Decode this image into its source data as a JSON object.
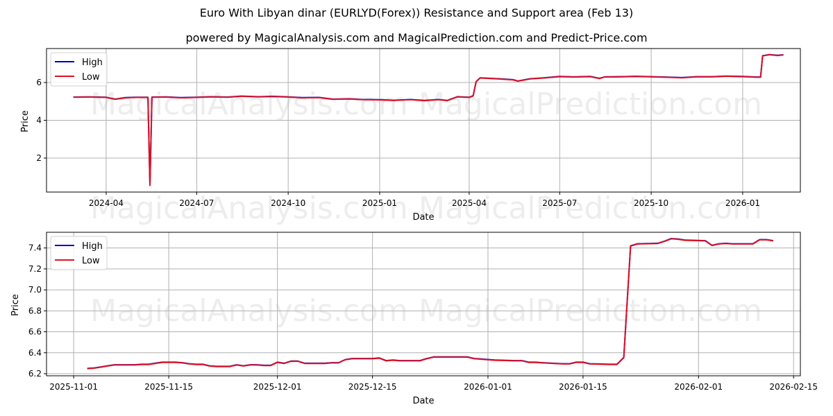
{
  "title": "Euro With Libyan dinar (EURLYD(Forex)) Resistance and Support area (Feb 13)",
  "subtitle": "powered by MagicalAnalysis.com and MagicalPrediction.com and Predict-Price.com",
  "watermarks": [
    "MagicalAnalysis.com",
    "MagicalPrediction.com"
  ],
  "colors": {
    "high": "#0000cc",
    "low": "#dd1122",
    "grid": "#b0b0b0"
  },
  "chart_data": [
    {
      "type": "line",
      "title": "",
      "xlabel": "Date",
      "ylabel": "Price",
      "ylim": [
        0.2,
        7.8
      ],
      "grid": true,
      "legend": {
        "position": "upper left",
        "entries": [
          "High",
          "Low"
        ]
      },
      "x_ticks": [
        "2024-04",
        "2024-07",
        "2024-10",
        "2025-01",
        "2025-04",
        "2025-07",
        "2025-10",
        "2026-01"
      ],
      "y_ticks": [
        "2",
        "4",
        "6"
      ],
      "x": [
        "2024-02-28",
        "2024-03-15",
        "2024-04-01",
        "2024-04-10",
        "2024-04-20",
        "2024-05-01",
        "2024-05-13",
        "2024-05-15",
        "2024-05-17",
        "2024-06-01",
        "2024-06-15",
        "2024-07-01",
        "2024-07-15",
        "2024-08-01",
        "2024-08-15",
        "2024-09-01",
        "2024-09-15",
        "2024-10-01",
        "2024-10-15",
        "2024-11-01",
        "2024-11-15",
        "2024-12-01",
        "2024-12-15",
        "2025-01-01",
        "2025-01-15",
        "2025-02-01",
        "2025-02-15",
        "2025-03-01",
        "2025-03-10",
        "2025-03-20",
        "2025-04-01",
        "2025-04-05",
        "2025-04-08",
        "2025-04-12",
        "2025-05-01",
        "2025-05-15",
        "2025-05-20",
        "2025-06-01",
        "2025-06-15",
        "2025-07-01",
        "2025-07-15",
        "2025-08-01",
        "2025-08-10",
        "2025-08-15",
        "2025-09-01",
        "2025-09-15",
        "2025-10-01",
        "2025-10-15",
        "2025-11-01",
        "2025-11-15",
        "2025-12-01",
        "2025-12-15",
        "2026-01-01",
        "2026-01-15",
        "2026-01-19",
        "2026-01-21",
        "2026-01-28",
        "2026-02-01",
        "2026-02-05",
        "2026-02-11"
      ],
      "series": [
        {
          "name": "High",
          "values": [
            5.23,
            5.24,
            5.22,
            5.12,
            5.2,
            5.22,
            5.22,
            0.58,
            5.23,
            5.24,
            5.2,
            5.22,
            5.25,
            5.23,
            5.28,
            5.25,
            5.27,
            5.24,
            5.2,
            5.21,
            5.12,
            5.14,
            5.1,
            5.09,
            5.06,
            5.1,
            5.05,
            5.1,
            5.05,
            5.25,
            5.22,
            5.3,
            6.05,
            6.25,
            6.2,
            6.15,
            6.08,
            6.2,
            6.25,
            6.32,
            6.3,
            6.32,
            6.22,
            6.3,
            6.31,
            6.33,
            6.31,
            6.29,
            6.26,
            6.31,
            6.31,
            6.34,
            6.32,
            6.29,
            6.29,
            7.42,
            7.48,
            7.46,
            7.44,
            7.47
          ]
        },
        {
          "name": "Low",
          "values": [
            5.22,
            5.23,
            5.21,
            5.11,
            5.19,
            5.21,
            5.21,
            0.55,
            5.22,
            5.23,
            5.19,
            5.21,
            5.24,
            5.22,
            5.27,
            5.24,
            5.26,
            5.23,
            5.19,
            5.2,
            5.11,
            5.13,
            5.09,
            5.08,
            5.05,
            5.09,
            5.04,
            5.09,
            5.04,
            5.24,
            5.21,
            5.29,
            6.04,
            6.24,
            6.19,
            6.14,
            6.07,
            6.19,
            6.24,
            6.31,
            6.29,
            6.31,
            6.21,
            6.29,
            6.3,
            6.32,
            6.3,
            6.28,
            6.25,
            6.3,
            6.3,
            6.33,
            6.31,
            6.28,
            6.28,
            7.41,
            7.47,
            7.45,
            7.43,
            7.46
          ]
        }
      ]
    },
    {
      "type": "line",
      "title": "",
      "xlabel": "Date",
      "ylabel": "Price",
      "ylim": [
        6.18,
        7.55
      ],
      "grid": true,
      "legend": {
        "position": "upper left",
        "entries": [
          "High",
          "Low"
        ]
      },
      "x_ticks": [
        "2025-11-01",
        "2025-11-15",
        "2025-12-01",
        "2025-12-15",
        "2026-01-01",
        "2026-01-15",
        "2026-02-01",
        "2026-02-15"
      ],
      "y_ticks": [
        "6.2",
        "6.4",
        "6.6",
        "6.8",
        "7.0",
        "7.2",
        "7.4"
      ],
      "x": [
        "2025-11-03",
        "2025-11-04",
        "2025-11-05",
        "2025-11-06",
        "2025-11-07",
        "2025-11-10",
        "2025-11-11",
        "2025-11-12",
        "2025-11-13",
        "2025-11-14",
        "2025-11-15",
        "2025-11-16",
        "2025-11-17",
        "2025-11-18",
        "2025-11-19",
        "2025-11-20",
        "2025-11-21",
        "2025-11-22",
        "2025-11-23",
        "2025-11-24",
        "2025-11-25",
        "2025-11-26",
        "2025-11-27",
        "2025-11-28",
        "2025-11-29",
        "2025-11-30",
        "2025-12-01",
        "2025-12-02",
        "2025-12-03",
        "2025-12-04",
        "2025-12-05",
        "2025-12-08",
        "2025-12-09",
        "2025-12-10",
        "2025-12-11",
        "2025-12-12",
        "2025-12-14",
        "2025-12-15",
        "2025-12-16",
        "2025-12-17",
        "2025-12-18",
        "2025-12-19",
        "2025-12-22",
        "2025-12-23",
        "2025-12-24",
        "2025-12-26",
        "2025-12-29",
        "2025-12-30",
        "2025-12-31",
        "2026-01-02",
        "2026-01-05",
        "2026-01-06",
        "2026-01-07",
        "2026-01-08",
        "2026-01-09",
        "2026-01-12",
        "2026-01-13",
        "2026-01-14",
        "2026-01-15",
        "2026-01-16",
        "2026-01-19",
        "2026-01-20",
        "2026-01-21",
        "2026-01-22",
        "2026-01-23",
        "2026-01-26",
        "2026-01-27",
        "2026-01-28",
        "2026-01-29",
        "2026-01-30",
        "2026-02-02",
        "2026-02-03",
        "2026-02-04",
        "2026-02-05",
        "2026-02-06",
        "2026-02-09",
        "2026-02-10",
        "2026-02-11",
        "2026-02-12"
      ],
      "series": [
        {
          "name": "High",
          "values": [
            6.25,
            6.255,
            6.265,
            6.275,
            6.285,
            6.285,
            6.29,
            6.29,
            6.3,
            6.31,
            6.31,
            6.31,
            6.305,
            6.295,
            6.29,
            6.29,
            6.275,
            6.27,
            6.27,
            6.27,
            6.285,
            6.275,
            6.285,
            6.285,
            6.28,
            6.28,
            6.31,
            6.3,
            6.32,
            6.32,
            6.3,
            6.3,
            6.305,
            6.305,
            6.335,
            6.345,
            6.345,
            6.345,
            6.35,
            6.325,
            6.33,
            6.325,
            6.325,
            6.345,
            6.36,
            6.36,
            6.36,
            6.345,
            6.34,
            6.33,
            6.325,
            6.325,
            6.31,
            6.31,
            6.305,
            6.295,
            6.295,
            6.31,
            6.31,
            6.295,
            6.29,
            6.29,
            6.355,
            7.42,
            7.44,
            7.445,
            7.465,
            7.49,
            7.485,
            7.475,
            7.47,
            7.425,
            7.44,
            7.445,
            7.44,
            7.44,
            7.48,
            7.48,
            7.47
          ]
        },
        {
          "name": "Low",
          "values": [
            6.248,
            6.253,
            6.263,
            6.273,
            6.283,
            6.283,
            6.288,
            6.288,
            6.298,
            6.308,
            6.308,
            6.308,
            6.303,
            6.293,
            6.288,
            6.288,
            6.273,
            6.268,
            6.268,
            6.268,
            6.283,
            6.273,
            6.283,
            6.283,
            6.278,
            6.278,
            6.308,
            6.298,
            6.318,
            6.318,
            6.298,
            6.298,
            6.303,
            6.303,
            6.333,
            6.343,
            6.343,
            6.343,
            6.348,
            6.323,
            6.328,
            6.323,
            6.323,
            6.343,
            6.358,
            6.358,
            6.358,
            6.343,
            6.338,
            6.328,
            6.323,
            6.323,
            6.308,
            6.308,
            6.303,
            6.293,
            6.293,
            6.308,
            6.308,
            6.293,
            6.288,
            6.288,
            6.353,
            7.418,
            7.438,
            7.443,
            7.463,
            7.488,
            7.483,
            7.473,
            7.468,
            7.423,
            7.438,
            7.443,
            7.438,
            7.438,
            7.478,
            7.478,
            7.468
          ]
        }
      ]
    }
  ]
}
